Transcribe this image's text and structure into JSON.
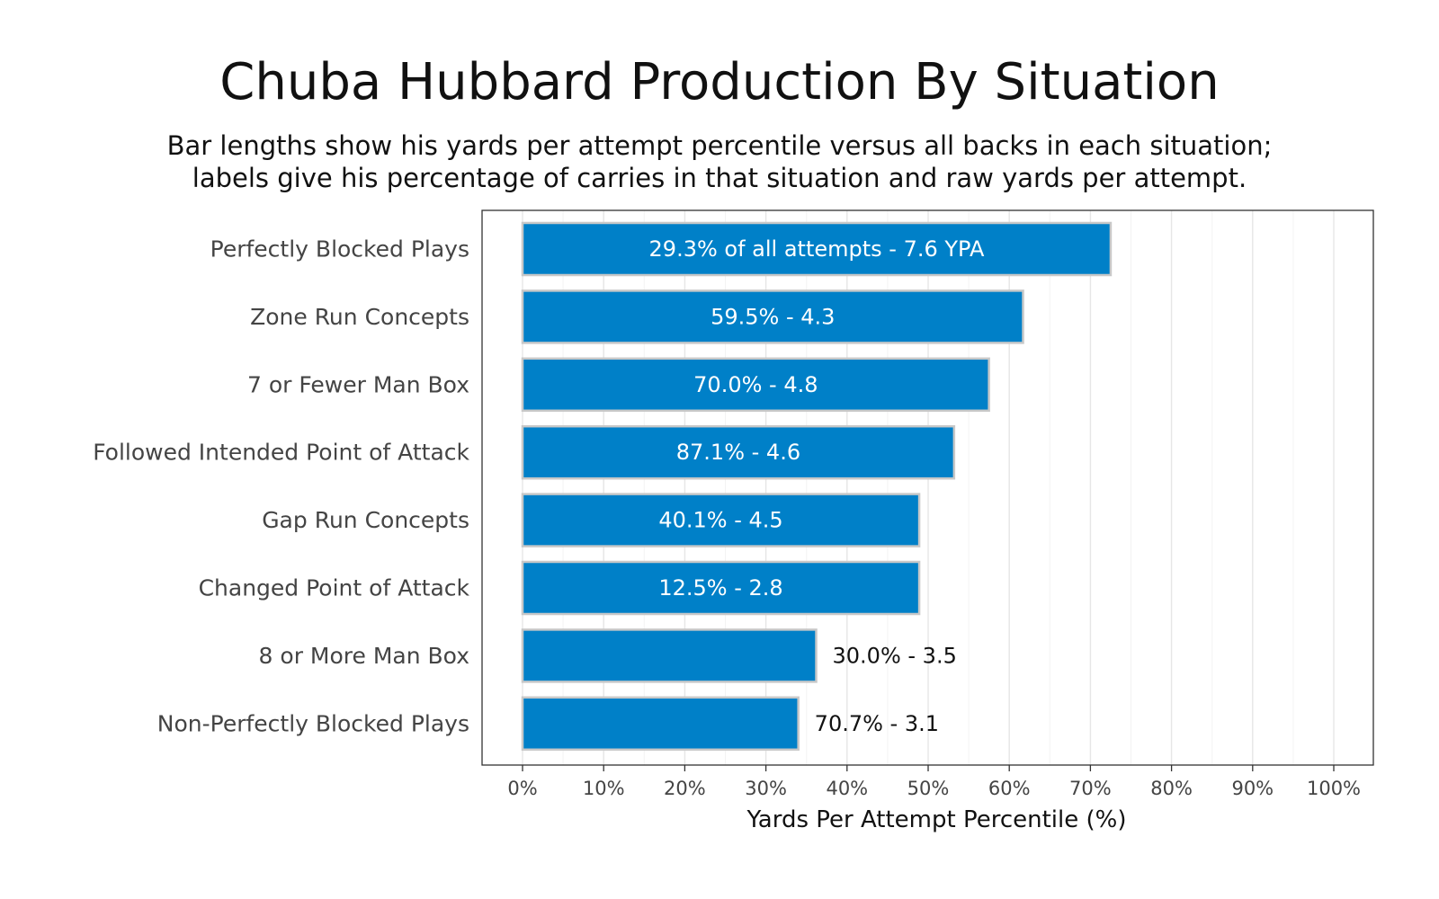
{
  "chart_data": {
    "type": "bar",
    "orientation": "horizontal",
    "title": "Chuba Hubbard Production By Situation",
    "subtitle_lines": [
      "Bar lengths show his yards per attempt percentile versus all backs in each situation;",
      "labels give his percentage of carries in that situation and raw yards per attempt."
    ],
    "xlabel": "Yards Per Attempt Percentile (%)",
    "ylabel": "",
    "xlim": [
      0,
      100
    ],
    "x_ticks": [
      0,
      10,
      20,
      30,
      40,
      50,
      60,
      70,
      80,
      90,
      100
    ],
    "x_tick_labels": [
      "0%",
      "10%",
      "20%",
      "30%",
      "40%",
      "50%",
      "60%",
      "70%",
      "80%",
      "90%",
      "100%"
    ],
    "grid": true,
    "bar_color": "#0080c8",
    "bar_edge_color": "#c8c8c8",
    "categories": [
      "Perfectly Blocked Plays",
      "Zone Run Concepts",
      "7 or Fewer Man Box",
      "Followed Intended Point of Attack",
      "Gap Run Concepts",
      "Changed Point of Attack",
      "8 or More Man Box",
      "Non-Perfectly Blocked Plays"
    ],
    "values": [
      72.5,
      61.7,
      57.5,
      53.2,
      48.9,
      48.9,
      36.2,
      34.0
    ],
    "labels": [
      "29.3% of all attempts - 7.6 YPA",
      "59.5% - 4.3",
      "70.0% - 4.8",
      "87.1% - 4.6",
      "40.1% - 4.5",
      "12.5% - 2.8",
      "30.0% - 3.5",
      "70.7% - 3.1"
    ],
    "label_inside": [
      true,
      true,
      true,
      true,
      true,
      true,
      false,
      false
    ]
  }
}
